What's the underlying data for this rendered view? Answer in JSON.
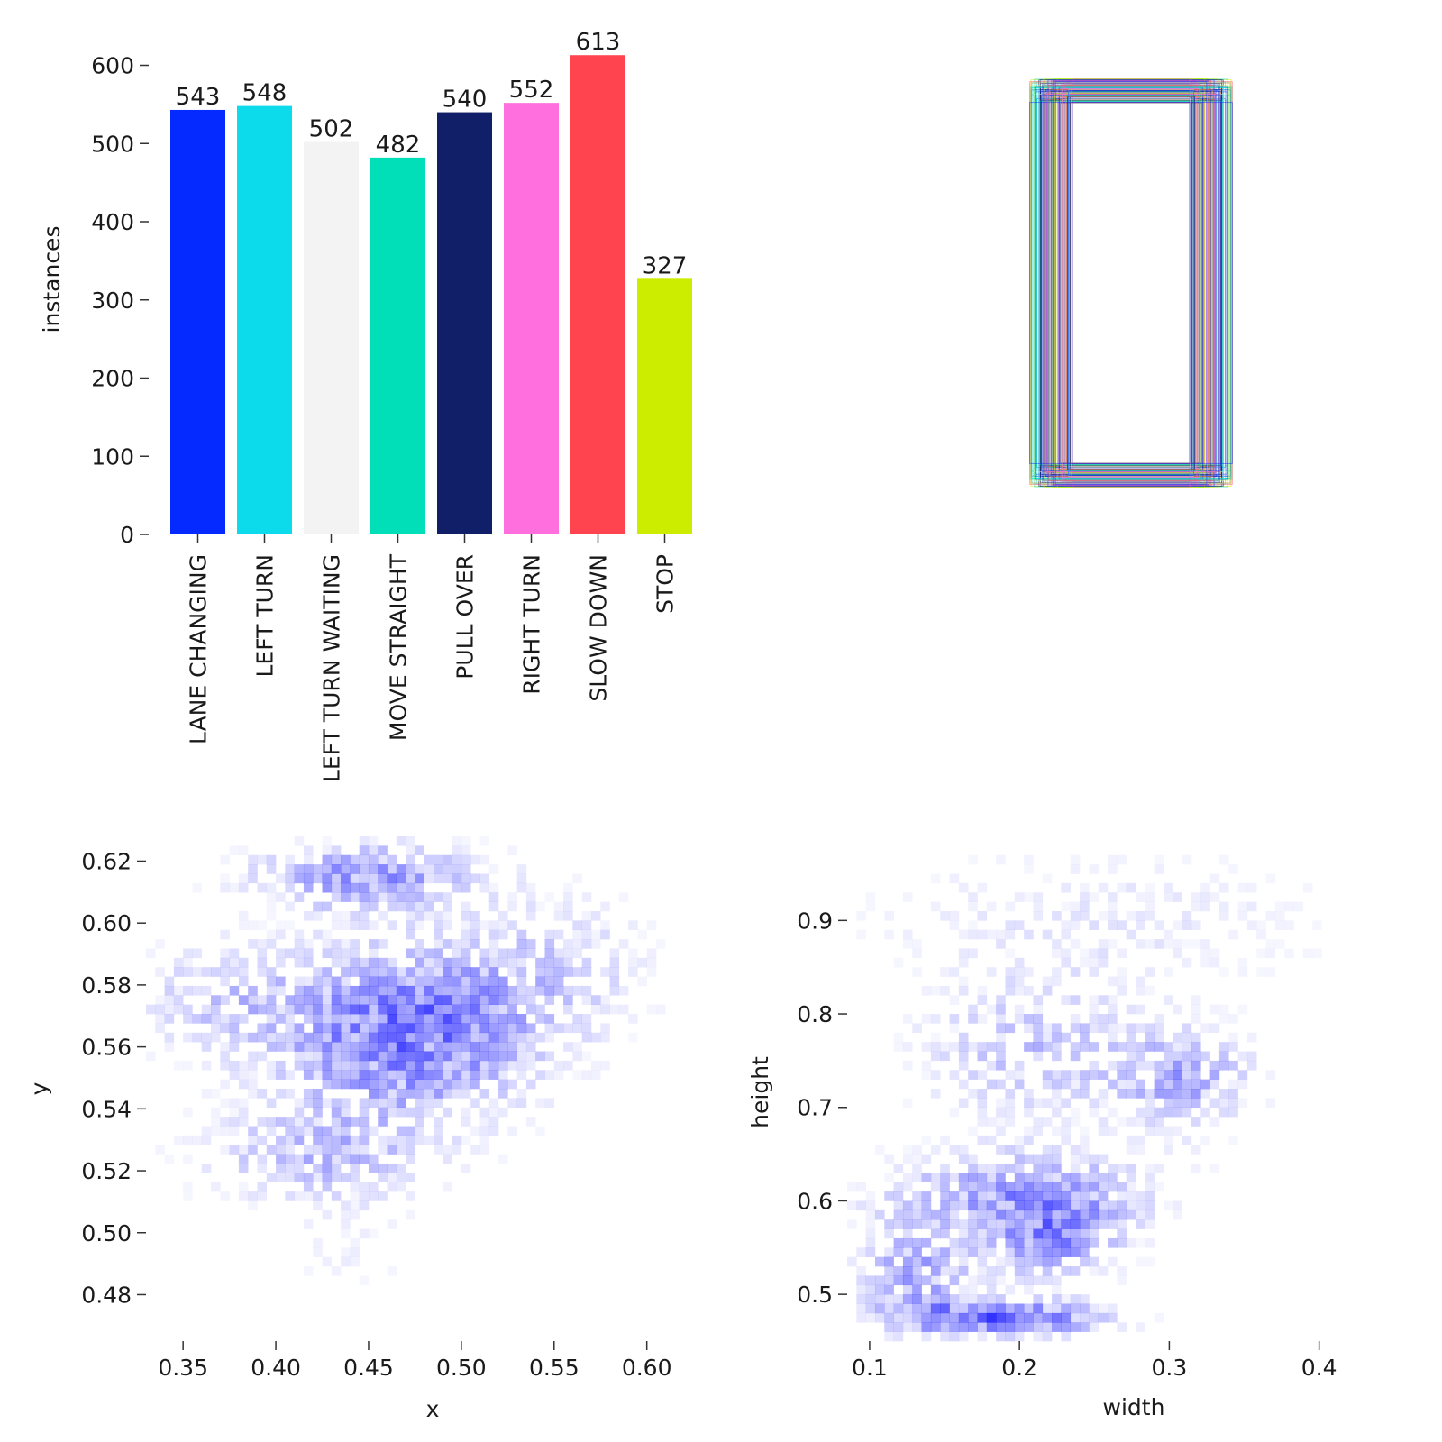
{
  "chart_data": [
    {
      "type": "bar",
      "ylabel": "instances",
      "xlabel": "",
      "ylim": [
        0,
        640
      ],
      "yticks": [
        "0",
        "100",
        "200",
        "300",
        "400",
        "500",
        "600"
      ],
      "categories": [
        "LANE CHANGING",
        "LEFT TURN",
        "LEFT TURN WAITING",
        "MOVE STRAIGHT",
        "PULL OVER",
        "RIGHT TURN",
        "SLOW DOWN",
        "STOP"
      ],
      "values": [
        543,
        548,
        502,
        482,
        540,
        552,
        613,
        327
      ],
      "value_labels": [
        "543",
        "548",
        "502",
        "482",
        "540",
        "552",
        "613",
        "327"
      ],
      "colors": [
        "#042AFF",
        "#0BDBEB",
        "#F3F3F3",
        "#00DFB7",
        "#111F68",
        "#FF6FDD",
        "#FF444F",
        "#CCED00"
      ]
    },
    {
      "type": "other",
      "description_free": true,
      "box_colors": [
        "#042AFF",
        "#0BDBEB",
        "#F3F3F3",
        "#00DFB7",
        "#111F68",
        "#FF6FDD",
        "#FF444F",
        "#CCED00",
        "#FF8C1A"
      ]
    },
    {
      "type": "heatmap",
      "xlabel": "x",
      "ylabel": "y",
      "xticks": [
        "0.35",
        "0.40",
        "0.45",
        "0.50",
        "0.55",
        "0.60"
      ],
      "yticks": [
        "0.48",
        "0.50",
        "0.52",
        "0.54",
        "0.56",
        "0.58",
        "0.60",
        "0.62"
      ],
      "xlim": [
        0.33,
        0.64
      ],
      "ylim": [
        0.465,
        0.628
      ],
      "cmap_color": "#0000ff"
    },
    {
      "type": "heatmap",
      "xlabel": "width",
      "ylabel": "height",
      "xticks": [
        "0.1",
        "0.2",
        "0.3",
        "0.4"
      ],
      "yticks": [
        "0.5",
        "0.6",
        "0.7",
        "0.8",
        "0.9"
      ],
      "xlim": [
        0.085,
        0.47
      ],
      "ylim": [
        0.45,
        0.99
      ],
      "cmap_color": "#0000ff"
    }
  ]
}
